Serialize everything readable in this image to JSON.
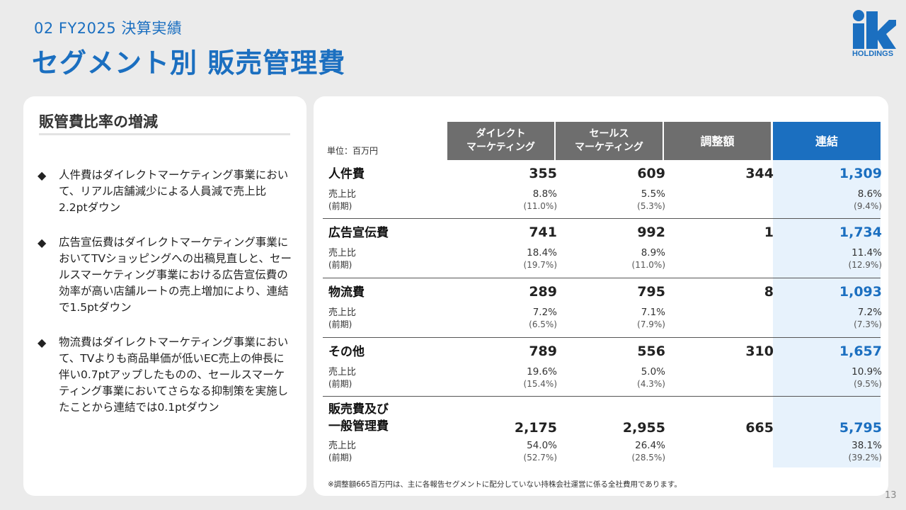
{
  "header": {
    "section": "02  FY2025  決算実績",
    "title": "セグメント別 販売管理費",
    "logo_text": "HOLDINGS",
    "logo_mark": "ik"
  },
  "left": {
    "heading": "販管費比率の増減",
    "bullet_icon": "◆",
    "bullets": [
      "人件費はダイレクトマーケティング事業において、リアル店舗減少による人員減で売上比2.2ptダウン",
      "広告宣伝費はダイレクトマーケティング事業においてTVショッピングへの出稿見直しと、セールスマーケティング事業における広告宣伝費の効率が高い店舗ルートの売上増加により、連結で1.5ptダウン",
      "物流費はダイレクトマーケティング事業において、TVよりも商品単価が低いEC売上の伸長に伴い0.7ptアップしたものの、セールスマーケティング事業においてさらなる抑制策を実施したことから連結では0.1ptダウン"
    ]
  },
  "table": {
    "unit": "単位：百万円",
    "headers": [
      "ダイレクト\nマーケティング",
      "セールス\nマーケティング",
      "調整額",
      "連結"
    ],
    "sub_label": "売上比",
    "prev_label": "(前期)",
    "rows": [
      {
        "label": "人件費",
        "values": [
          "355",
          "609",
          "344",
          "1,309"
        ],
        "ratio": [
          "8.8%",
          "5.5%",
          "",
          "8.6%"
        ],
        "prev": [
          "(11.0%)",
          "(5.3%)",
          "",
          "(9.4%)"
        ]
      },
      {
        "label": "広告宣伝費",
        "values": [
          "741",
          "992",
          "1",
          "1,734"
        ],
        "ratio": [
          "18.4%",
          "8.9%",
          "",
          "11.4%"
        ],
        "prev": [
          "(19.7%)",
          "(11.0%)",
          "",
          "(12.9%)"
        ]
      },
      {
        "label": "物流費",
        "values": [
          "289",
          "795",
          "8",
          "1,093"
        ],
        "ratio": [
          "7.2%",
          "7.1%",
          "",
          "7.2%"
        ],
        "prev": [
          "(6.5%)",
          "(7.9%)",
          "",
          "(7.3%)"
        ]
      },
      {
        "label": "その他",
        "values": [
          "789",
          "556",
          "310",
          "1,657"
        ],
        "ratio": [
          "19.6%",
          "5.0%",
          "",
          "10.9%"
        ],
        "prev": [
          "(15.4%)",
          "(4.3%)",
          "",
          "(9.5%)"
        ]
      },
      {
        "label": "販売費及び\n一般管理費",
        "values": [
          "2,175",
          "2,955",
          "665",
          "5,795"
        ],
        "ratio": [
          "54.0%",
          "26.4%",
          "",
          "38.1%"
        ],
        "prev": [
          "(52.7%)",
          "(28.5%)",
          "",
          "(39.2%)"
        ]
      }
    ],
    "footnote": "※調整額665百万円は、主に各報告セグメントに配分していない持株会社運営に係る全社費用であります。"
  },
  "page_number": "13",
  "colors": {
    "accent": "#1b6fc0",
    "header_gray": "#6e6e6e",
    "consolidated_bg": "#e7f2fc"
  }
}
